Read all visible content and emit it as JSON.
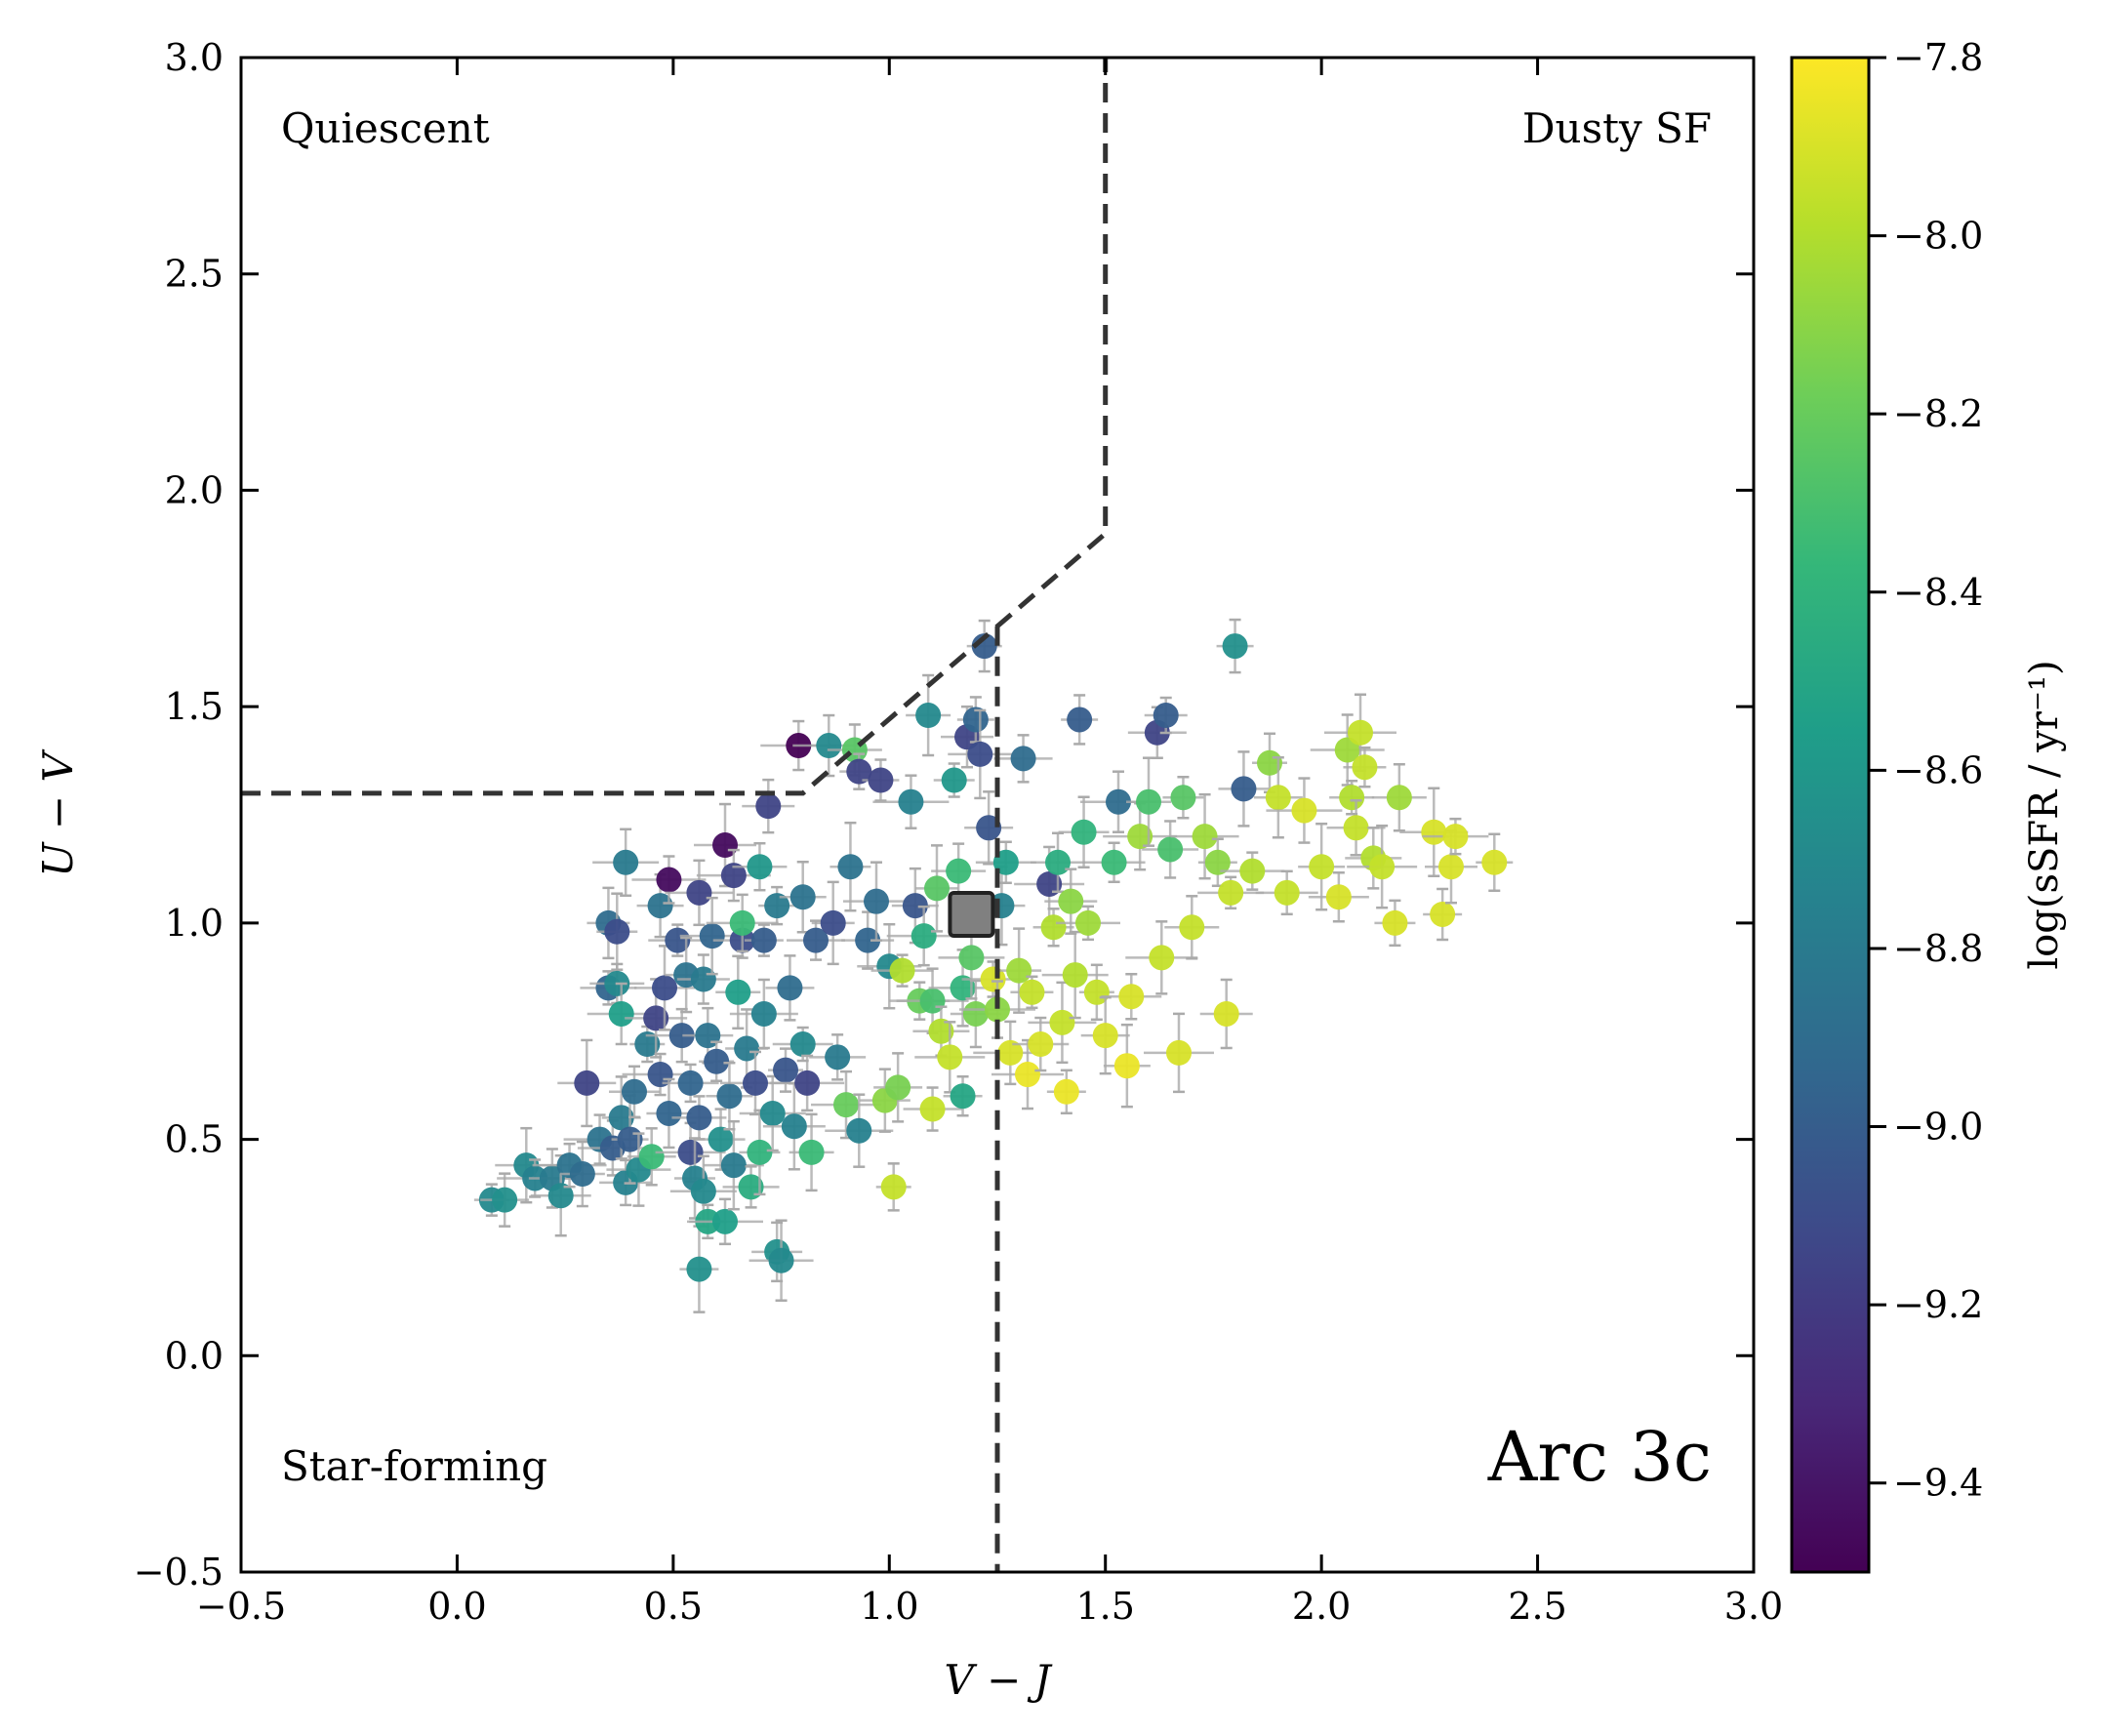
{
  "chart_data": {
    "type": "scatter",
    "title": "",
    "xlabel": "V − J",
    "ylabel": "U − V",
    "xlim": [
      -0.5,
      3.0
    ],
    "ylim": [
      -0.5,
      3.0
    ],
    "xticks": [
      "−0.5",
      "0.0",
      "0.5",
      "1.0",
      "1.5",
      "2.0",
      "2.5",
      "3.0"
    ],
    "yticks": [
      "−0.5",
      "0.0",
      "0.5",
      "1.0",
      "1.5",
      "2.0",
      "2.5",
      "3.0"
    ],
    "region_labels": {
      "quiescent": "Quiescent",
      "dusty_sf": "Dusty SF",
      "star_forming": "Star-forming"
    },
    "panel_label": "Arc 3c",
    "boundary": [
      [
        -0.5,
        1.3
      ],
      [
        0.8,
        1.3
      ],
      [
        1.5,
        1.9
      ],
      [
        1.5,
        3.0
      ]
    ],
    "vj_cut": 1.25,
    "colorbar": {
      "label": "log(sSFR / yr⁻¹)",
      "range": [
        -9.5,
        -7.8
      ],
      "ticks": [
        "−7.8",
        "−8.0",
        "−8.2",
        "−8.4",
        "−8.6",
        "−8.8",
        "−9.0",
        "−9.2",
        "−9.4"
      ],
      "colormap": [
        "#440154",
        "#482878",
        "#3e4989",
        "#31688e",
        "#26828e",
        "#1f9e89",
        "#35b779",
        "#6ece58",
        "#b5de2b",
        "#fde725"
      ]
    },
    "stacked_point": {
      "vj": 1.19,
      "uv": 1.02,
      "color": "#808080"
    },
    "series": [
      {
        "name": "galaxies",
        "points": [
          [
            0.08,
            0.36,
            -8.7
          ],
          [
            0.11,
            0.36,
            -8.65
          ],
          [
            0.16,
            0.44,
            -8.7
          ],
          [
            0.18,
            0.41,
            -8.75
          ],
          [
            0.22,
            0.41,
            -8.8
          ],
          [
            0.24,
            0.37,
            -8.7
          ],
          [
            0.26,
            0.44,
            -8.85
          ],
          [
            0.29,
            0.42,
            -8.9
          ],
          [
            0.3,
            0.63,
            -9.15
          ],
          [
            0.33,
            0.5,
            -8.85
          ],
          [
            0.35,
            1.0,
            -8.9
          ],
          [
            0.35,
            0.85,
            -8.95
          ],
          [
            0.36,
            0.48,
            -9.0
          ],
          [
            0.37,
            0.98,
            -9.1
          ],
          [
            0.37,
            0.86,
            -8.7
          ],
          [
            0.38,
            0.79,
            -8.55
          ],
          [
            0.38,
            0.55,
            -8.8
          ],
          [
            0.39,
            0.4,
            -8.75
          ],
          [
            0.39,
            1.14,
            -8.8
          ],
          [
            0.4,
            0.5,
            -9.0
          ],
          [
            0.41,
            0.61,
            -8.9
          ],
          [
            0.42,
            0.43,
            -8.7
          ],
          [
            0.44,
            0.72,
            -8.8
          ],
          [
            0.45,
            0.46,
            -8.35
          ],
          [
            0.46,
            0.78,
            -9.15
          ],
          [
            0.47,
            0.65,
            -9.05
          ],
          [
            0.47,
            1.04,
            -8.85
          ],
          [
            0.48,
            0.85,
            -9.1
          ],
          [
            0.49,
            1.1,
            -9.45
          ],
          [
            0.49,
            0.56,
            -8.95
          ],
          [
            0.51,
            0.96,
            -9.05
          ],
          [
            0.52,
            0.74,
            -9.0
          ],
          [
            0.53,
            0.88,
            -8.85
          ],
          [
            0.54,
            0.63,
            -8.95
          ],
          [
            0.54,
            0.47,
            -9.1
          ],
          [
            0.55,
            0.41,
            -8.75
          ],
          [
            0.56,
            0.55,
            -9.0
          ],
          [
            0.56,
            1.07,
            -9.15
          ],
          [
            0.56,
            0.2,
            -8.65
          ],
          [
            0.57,
            0.87,
            -8.8
          ],
          [
            0.57,
            0.38,
            -8.7
          ],
          [
            0.58,
            0.31,
            -8.5
          ],
          [
            0.58,
            0.74,
            -8.85
          ],
          [
            0.59,
            0.97,
            -8.95
          ],
          [
            0.6,
            0.68,
            -9.0
          ],
          [
            0.61,
            0.5,
            -8.65
          ],
          [
            0.62,
            1.18,
            -9.45
          ],
          [
            0.62,
            0.31,
            -8.55
          ],
          [
            0.63,
            0.6,
            -8.9
          ],
          [
            0.64,
            0.44,
            -8.8
          ],
          [
            0.64,
            1.11,
            -9.15
          ],
          [
            0.65,
            0.84,
            -8.55
          ],
          [
            0.66,
            0.96,
            -9.1
          ],
          [
            0.66,
            1.0,
            -8.35
          ],
          [
            0.67,
            0.71,
            -8.8
          ],
          [
            0.68,
            0.39,
            -8.45
          ],
          [
            0.69,
            0.63,
            -9.1
          ],
          [
            0.7,
            0.47,
            -8.4
          ],
          [
            0.7,
            1.13,
            -8.6
          ],
          [
            0.71,
            0.79,
            -8.75
          ],
          [
            0.71,
            0.96,
            -9.0
          ],
          [
            0.72,
            1.27,
            -9.15
          ],
          [
            0.73,
            0.56,
            -8.7
          ],
          [
            0.74,
            1.04,
            -8.8
          ],
          [
            0.74,
            0.24,
            -8.65
          ],
          [
            0.75,
            0.22,
            -8.7
          ],
          [
            0.76,
            0.66,
            -9.05
          ],
          [
            0.77,
            0.85,
            -8.9
          ],
          [
            0.78,
            0.53,
            -8.75
          ],
          [
            0.79,
            1.41,
            -9.5
          ],
          [
            0.8,
            1.06,
            -8.85
          ],
          [
            0.8,
            0.72,
            -8.7
          ],
          [
            0.81,
            0.63,
            -9.15
          ],
          [
            0.82,
            0.47,
            -8.35
          ],
          [
            0.83,
            0.96,
            -9.0
          ],
          [
            0.86,
            1.41,
            -8.7
          ],
          [
            0.87,
            1.0,
            -9.1
          ],
          [
            0.88,
            0.69,
            -8.8
          ],
          [
            0.9,
            0.58,
            -8.2
          ],
          [
            0.91,
            1.13,
            -8.85
          ],
          [
            0.92,
            1.4,
            -8.25
          ],
          [
            0.93,
            0.52,
            -8.75
          ],
          [
            0.93,
            1.35,
            -9.15
          ],
          [
            0.95,
            0.96,
            -8.95
          ],
          [
            0.97,
            1.05,
            -8.9
          ],
          [
            0.98,
            1.33,
            -9.15
          ],
          [
            0.99,
            0.59,
            -8.1
          ],
          [
            1.0,
            0.9,
            -8.7
          ],
          [
            1.01,
            0.39,
            -7.95
          ],
          [
            1.02,
            0.62,
            -8.15
          ],
          [
            1.03,
            0.89,
            -8.0
          ],
          [
            1.05,
            1.28,
            -8.75
          ],
          [
            1.06,
            1.04,
            -9.05
          ],
          [
            1.07,
            0.82,
            -8.2
          ],
          [
            1.08,
            0.97,
            -8.45
          ],
          [
            1.09,
            1.48,
            -8.7
          ],
          [
            1.1,
            0.57,
            -7.95
          ],
          [
            1.1,
            0.82,
            -8.3
          ],
          [
            1.11,
            1.08,
            -8.25
          ],
          [
            1.12,
            0.75,
            -8.0
          ],
          [
            1.14,
            0.69,
            -7.95
          ],
          [
            1.15,
            1.33,
            -8.6
          ],
          [
            1.16,
            1.12,
            -8.35
          ],
          [
            1.17,
            0.85,
            -8.4
          ],
          [
            1.17,
            0.6,
            -8.5
          ],
          [
            1.18,
            1.43,
            -9.15
          ],
          [
            1.19,
            0.92,
            -8.25
          ],
          [
            1.2,
            1.47,
            -8.95
          ],
          [
            1.2,
            0.79,
            -8.15
          ],
          [
            1.21,
            1.39,
            -9.1
          ],
          [
            1.22,
            1.64,
            -9.0
          ],
          [
            1.23,
            1.22,
            -9.05
          ],
          [
            1.24,
            0.87,
            -7.9
          ],
          [
            1.25,
            0.8,
            -8.1
          ],
          [
            1.26,
            1.04,
            -8.75
          ],
          [
            1.27,
            1.14,
            -8.55
          ],
          [
            1.28,
            0.7,
            -7.9
          ],
          [
            1.3,
            0.89,
            -8.05
          ],
          [
            1.31,
            1.38,
            -8.9
          ],
          [
            1.32,
            0.65,
            -7.85
          ],
          [
            1.33,
            0.84,
            -7.95
          ],
          [
            1.35,
            0.72,
            -7.9
          ],
          [
            1.37,
            1.09,
            -9.15
          ],
          [
            1.38,
            0.99,
            -8.0
          ],
          [
            1.39,
            1.14,
            -8.45
          ],
          [
            1.4,
            0.77,
            -7.95
          ],
          [
            1.41,
            0.61,
            -7.85
          ],
          [
            1.42,
            1.05,
            -8.1
          ],
          [
            1.43,
            0.88,
            -8.0
          ],
          [
            1.44,
            1.47,
            -9.0
          ],
          [
            1.45,
            1.21,
            -8.4
          ],
          [
            1.46,
            1.0,
            -8.05
          ],
          [
            1.48,
            0.84,
            -7.95
          ],
          [
            1.5,
            0.74,
            -7.9
          ],
          [
            1.52,
            1.14,
            -8.35
          ],
          [
            1.53,
            1.28,
            -8.9
          ],
          [
            1.55,
            0.67,
            -7.85
          ],
          [
            1.56,
            0.83,
            -7.9
          ],
          [
            1.58,
            1.2,
            -8.05
          ],
          [
            1.6,
            1.28,
            -8.3
          ],
          [
            1.62,
            1.44,
            -9.15
          ],
          [
            1.63,
            0.92,
            -7.95
          ],
          [
            1.64,
            1.48,
            -9.0
          ],
          [
            1.65,
            1.17,
            -8.3
          ],
          [
            1.67,
            0.7,
            -7.9
          ],
          [
            1.68,
            1.29,
            -8.25
          ],
          [
            1.7,
            0.99,
            -7.95
          ],
          [
            1.73,
            1.2,
            -8.05
          ],
          [
            1.76,
            1.14,
            -8.1
          ],
          [
            1.78,
            0.79,
            -7.9
          ],
          [
            1.79,
            1.07,
            -7.95
          ],
          [
            1.8,
            1.64,
            -8.65
          ],
          [
            1.82,
            1.31,
            -9.0
          ],
          [
            1.84,
            1.12,
            -8.0
          ],
          [
            1.88,
            1.37,
            -8.1
          ],
          [
            1.9,
            1.29,
            -7.95
          ],
          [
            1.92,
            1.07,
            -7.95
          ],
          [
            1.96,
            1.26,
            -7.9
          ],
          [
            2.0,
            1.13,
            -7.95
          ],
          [
            2.04,
            1.06,
            -7.9
          ],
          [
            2.06,
            1.4,
            -8.05
          ],
          [
            2.07,
            1.29,
            -8.0
          ],
          [
            2.08,
            1.22,
            -7.95
          ],
          [
            2.09,
            1.44,
            -7.95
          ],
          [
            2.1,
            1.36,
            -7.95
          ],
          [
            2.12,
            1.15,
            -8.0
          ],
          [
            2.14,
            1.13,
            -7.95
          ],
          [
            2.17,
            1.0,
            -7.9
          ],
          [
            2.18,
            1.29,
            -8.05
          ],
          [
            2.26,
            1.21,
            -7.9
          ],
          [
            2.28,
            1.02,
            -7.9
          ],
          [
            2.3,
            1.13,
            -7.9
          ],
          [
            2.31,
            1.2,
            -7.9
          ],
          [
            2.4,
            1.14,
            -7.9
          ]
        ]
      }
    ]
  }
}
